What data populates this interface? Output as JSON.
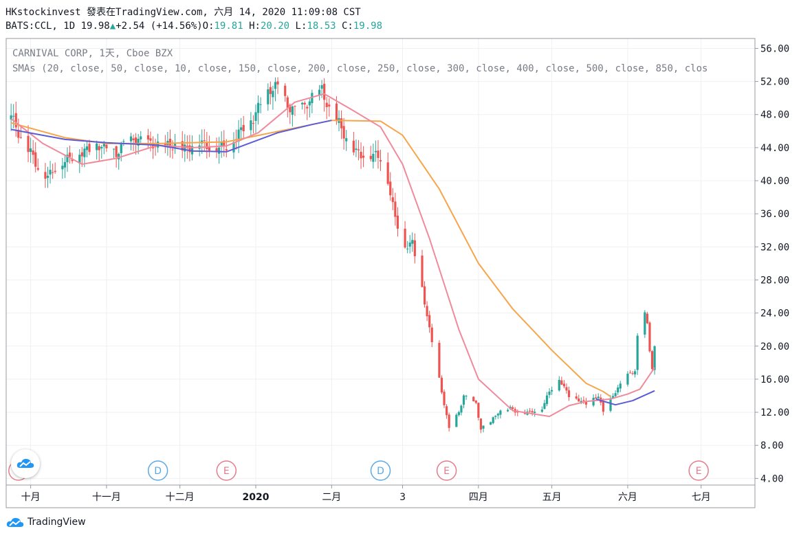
{
  "header": {
    "line1": "HKstockinvest 發表在TradingView.com, 六月 14, 2020 11:09:08 CST",
    "symbol": "BATS:CCL,",
    "interval": "1D",
    "last": "19.98",
    "arrow": "▲",
    "change": "+2.54",
    "change_pct": "(+14.56%)",
    "o_label": "O:",
    "o": "19.81",
    "h_label": "H:",
    "h": "20.20",
    "l_label": "L:",
    "l": "18.53",
    "c_label": "C:",
    "c": "19.98"
  },
  "legend": {
    "title": "CARNIVAL CORP, 1天, Cboe BZX",
    "sma": "SMAs (20, close, 50, close, 10, close, 150, close, 200, close, 250, close, 300, close, 400, close, 500, close, 850, clos"
  },
  "footer": {
    "brand": "TradingView"
  },
  "colors": {
    "up": "#26a69a",
    "down": "#ef5350",
    "sma_pink": "#f08a9a",
    "sma_orange": "#f7a54a",
    "sma_blue": "#5b5bd6",
    "grid": "#eef0f3",
    "event_d": "#5aa9e6",
    "event_e": "#e57b8a"
  },
  "chart_data": {
    "type": "candlestick",
    "y_ticks": [
      4,
      8,
      12,
      16,
      20,
      24,
      28,
      32,
      36,
      40,
      44,
      48,
      52,
      56
    ],
    "y_range": [
      3.2,
      57.2
    ],
    "x_labels": [
      {
        "label": "十月",
        "date": "2019-10-01"
      },
      {
        "label": "十一月",
        "date": "2019-11-01"
      },
      {
        "label": "十二月",
        "date": "2019-12-01"
      },
      {
        "label": "2020",
        "date": "2020-01-01"
      },
      {
        "label": "二月",
        "date": "2020-02-01"
      },
      {
        "label": "3",
        "date": "2020-03-01"
      },
      {
        "label": "四月",
        "date": "2020-04-01"
      },
      {
        "label": "五月",
        "date": "2020-05-01"
      },
      {
        "label": "六月",
        "date": "2020-06-01"
      },
      {
        "label": "七月",
        "date": "2020-07-01"
      }
    ],
    "x_range": [
      "2019-09-21",
      "2020-07-23"
    ],
    "events": [
      {
        "type": "E",
        "date": "2019-09-26"
      },
      {
        "type": "D",
        "date": "2019-11-22"
      },
      {
        "type": "E",
        "date": "2019-12-20"
      },
      {
        "type": "D",
        "date": "2020-02-21"
      },
      {
        "type": "E",
        "date": "2020-03-19"
      },
      {
        "type": "E",
        "date": "2020-06-30"
      }
    ],
    "close_anchors": [
      [
        "2019-09-23",
        48.0
      ],
      [
        "2019-09-27",
        45.0
      ],
      [
        "2019-10-01",
        43.5
      ],
      [
        "2019-10-04",
        41.5
      ],
      [
        "2019-10-08",
        40.5
      ],
      [
        "2019-10-11",
        41.5
      ],
      [
        "2019-10-15",
        42.5
      ],
      [
        "2019-10-21",
        43.3
      ],
      [
        "2019-10-28",
        44.3
      ],
      [
        "2019-11-01",
        44.0
      ],
      [
        "2019-11-05",
        43.2
      ],
      [
        "2019-11-08",
        44.5
      ],
      [
        "2019-11-13",
        45.0
      ],
      [
        "2019-11-18",
        44.6
      ],
      [
        "2019-11-22",
        44.2
      ],
      [
        "2019-11-27",
        44.3
      ],
      [
        "2019-12-04",
        43.8
      ],
      [
        "2019-12-09",
        44.8
      ],
      [
        "2019-12-13",
        44.0
      ],
      [
        "2019-12-20",
        44.2
      ],
      [
        "2019-12-23",
        45.0
      ],
      [
        "2019-12-27",
        46.5
      ],
      [
        "2019-12-31",
        47.5
      ],
      [
        "2020-01-03",
        49.5
      ],
      [
        "2020-01-07",
        51.0
      ],
      [
        "2020-01-10",
        51.5
      ],
      [
        "2020-01-14",
        49.0
      ],
      [
        "2020-01-17",
        48.5
      ],
      [
        "2020-01-21",
        49.0
      ],
      [
        "2020-01-24",
        50.0
      ],
      [
        "2020-01-28",
        51.0
      ],
      [
        "2020-01-31",
        48.5
      ],
      [
        "2020-02-04",
        47.0
      ],
      [
        "2020-02-07",
        45.0
      ],
      [
        "2020-02-11",
        43.5
      ],
      [
        "2020-02-14",
        43.0
      ],
      [
        "2020-02-18",
        43.2
      ],
      [
        "2020-02-21",
        42.8
      ],
      [
        "2020-02-24",
        40.0
      ],
      [
        "2020-02-27",
        35.5
      ],
      [
        "2020-03-02",
        32.0
      ],
      [
        "2020-03-05",
        32.5
      ],
      [
        "2020-03-09",
        27.0
      ],
      [
        "2020-03-12",
        22.0
      ],
      [
        "2020-03-16",
        16.0
      ],
      [
        "2020-03-18",
        13.0
      ],
      [
        "2020-03-20",
        10.0
      ],
      [
        "2020-03-24",
        12.0
      ],
      [
        "2020-03-26",
        14.0
      ],
      [
        "2020-03-31",
        13.0
      ],
      [
        "2020-04-02",
        10.0
      ],
      [
        "2020-04-06",
        10.8
      ],
      [
        "2020-04-09",
        12.0
      ],
      [
        "2020-04-14",
        12.5
      ],
      [
        "2020-04-17",
        12.0
      ],
      [
        "2020-04-22",
        12.0
      ],
      [
        "2020-04-27",
        12.5
      ],
      [
        "2020-04-30",
        14.5
      ],
      [
        "2020-05-04",
        16.0
      ],
      [
        "2020-05-08",
        14.0
      ],
      [
        "2020-05-12",
        13.5
      ],
      [
        "2020-05-15",
        13.0
      ],
      [
        "2020-05-20",
        14.0
      ],
      [
        "2020-05-22",
        12.0
      ],
      [
        "2020-05-27",
        14.5
      ],
      [
        "2020-06-01",
        16.5
      ],
      [
        "2020-06-04",
        17.0
      ],
      [
        "2020-06-05",
        21.0
      ],
      [
        "2020-06-08",
        24.0
      ],
      [
        "2020-06-09",
        22.5
      ],
      [
        "2020-06-10",
        19.5
      ],
      [
        "2020-06-11",
        17.4
      ],
      [
        "2020-06-12",
        19.98
      ]
    ],
    "series": [
      {
        "name": "SMA 50",
        "color": "#f7a54a",
        "points": [
          [
            "2019-09-23",
            47.0
          ],
          [
            "2019-10-15",
            45.2
          ],
          [
            "2019-11-01",
            44.5
          ],
          [
            "2019-11-22",
            44.5
          ],
          [
            "2019-12-20",
            44.7
          ],
          [
            "2020-01-24",
            46.8
          ],
          [
            "2020-02-01",
            47.3
          ],
          [
            "2020-02-21",
            47.2
          ],
          [
            "2020-03-01",
            45.5
          ],
          [
            "2020-03-16",
            39.0
          ],
          [
            "2020-04-01",
            30.0
          ],
          [
            "2020-04-15",
            24.5
          ],
          [
            "2020-05-01",
            19.5
          ],
          [
            "2020-05-15",
            15.5
          ],
          [
            "2020-05-22",
            14.5
          ],
          [
            "2020-05-25",
            13.9
          ]
        ]
      },
      {
        "name": "SMA 20",
        "color": "#f08a9a",
        "points": [
          [
            "2019-09-23",
            47.5
          ],
          [
            "2019-10-06",
            44.5
          ],
          [
            "2019-10-22",
            42.0
          ],
          [
            "2019-11-05",
            42.7
          ],
          [
            "2019-11-22",
            44.3
          ],
          [
            "2019-12-06",
            44.0
          ],
          [
            "2019-12-20",
            44.2
          ],
          [
            "2020-01-02",
            45.8
          ],
          [
            "2020-01-17",
            49.5
          ],
          [
            "2020-01-29",
            50.5
          ],
          [
            "2020-02-08",
            48.8
          ],
          [
            "2020-02-21",
            46.5
          ],
          [
            "2020-03-01",
            42.0
          ],
          [
            "2020-03-12",
            33.0
          ],
          [
            "2020-03-24",
            22.0
          ],
          [
            "2020-04-01",
            16.0
          ],
          [
            "2020-04-15",
            12.2
          ],
          [
            "2020-04-30",
            11.5
          ],
          [
            "2020-05-08",
            12.8
          ],
          [
            "2020-05-15",
            13.3
          ],
          [
            "2020-05-25",
            13.6
          ],
          [
            "2020-06-01",
            14.2
          ],
          [
            "2020-06-06",
            14.8
          ],
          [
            "2020-06-12",
            17.4
          ]
        ]
      },
      {
        "name": "SMA 150",
        "color": "#5b5bd6",
        "points": [
          [
            "2019-09-23",
            46.2
          ],
          [
            "2019-10-15",
            45.0
          ],
          [
            "2019-11-01",
            44.6
          ],
          [
            "2019-11-22",
            44.3
          ],
          [
            "2019-12-06",
            43.6
          ],
          [
            "2019-12-20",
            43.5
          ],
          [
            "2020-01-10",
            45.8
          ],
          [
            "2020-01-24",
            46.8
          ],
          [
            "2020-02-01",
            47.3
          ]
        ]
      },
      {
        "name": "SMA 150 (recent)",
        "color": "#5b5bd6",
        "points": [
          [
            "2020-05-19",
            13.6
          ],
          [
            "2020-05-27",
            12.9
          ],
          [
            "2020-06-03",
            13.4
          ],
          [
            "2020-06-12",
            14.6
          ]
        ]
      }
    ]
  }
}
